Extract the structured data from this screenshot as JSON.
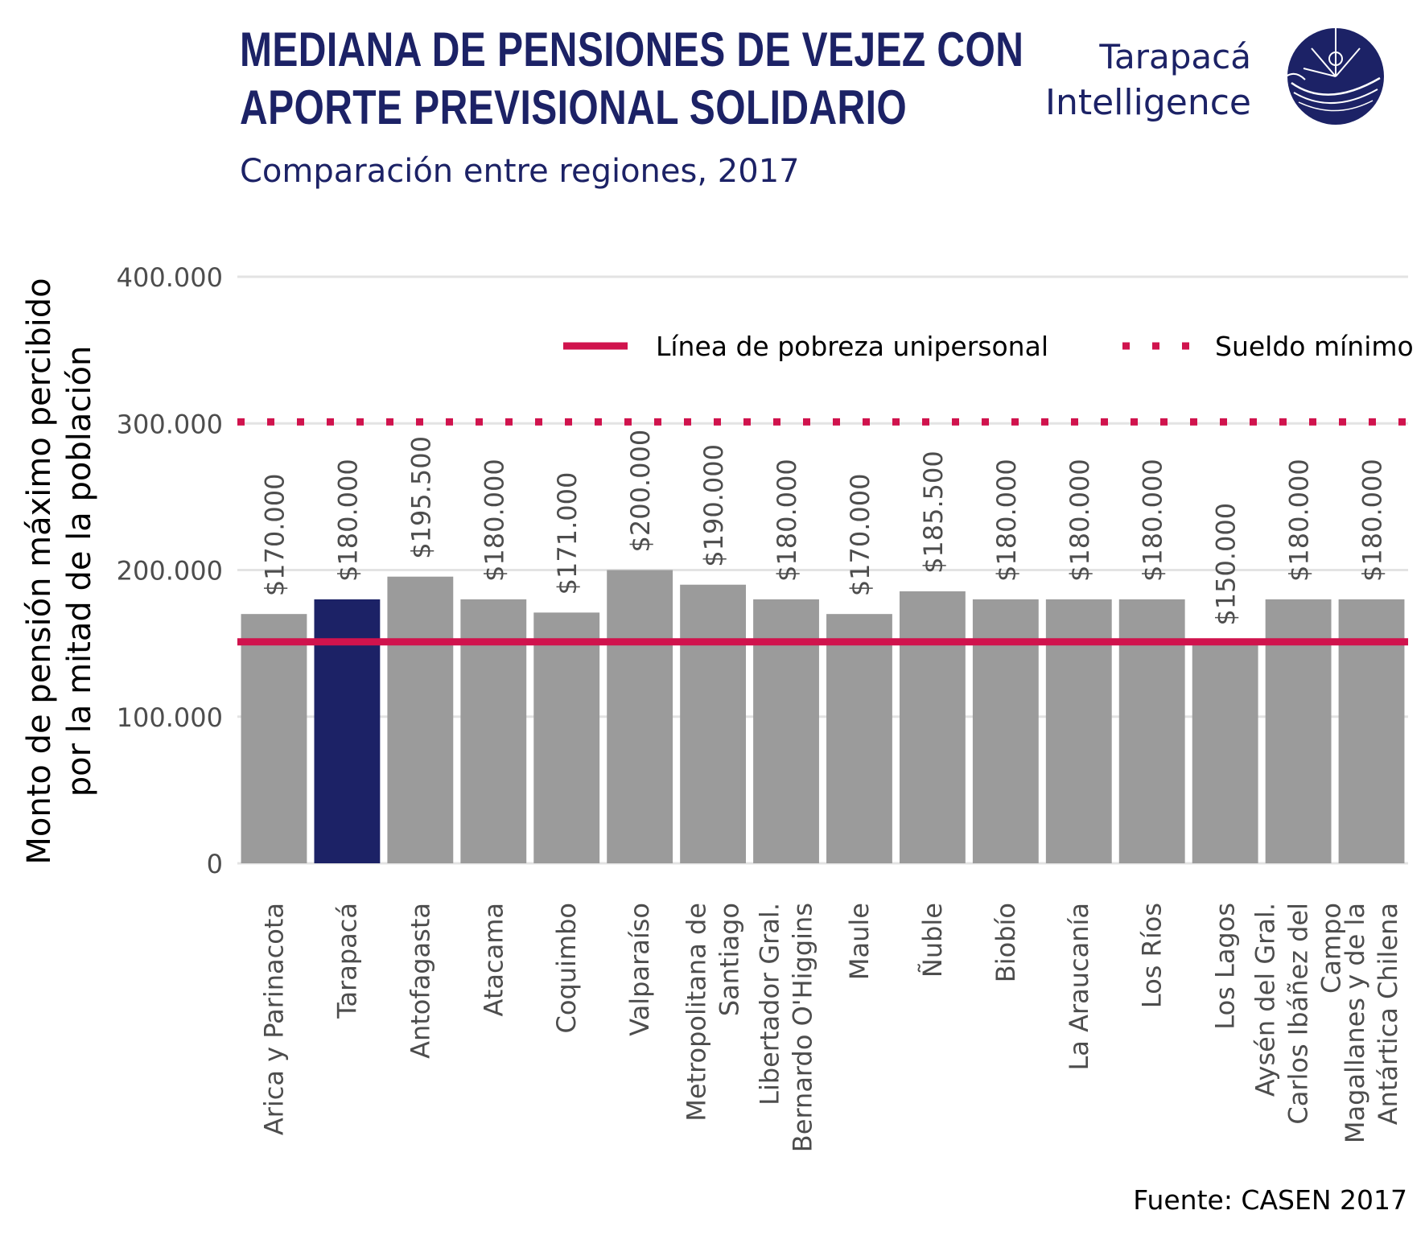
{
  "header": {
    "title_lines": [
      "MEDIANA DE PENSIONES DE VEJEZ CON",
      "APORTE PREVISIONAL SOLIDARIO"
    ],
    "subtitle": "Comparación entre regiones, 2017"
  },
  "logo": {
    "line1": "Tarapacá",
    "line2": "Intelligence"
  },
  "source": "Fuente: CASEN 2017",
  "colors": {
    "bar_default": "#9b9b9b",
    "bar_highlight": "#1c2266",
    "reference_line": "#d0134d",
    "grid": "#e3e3e3",
    "title": "#1c2266"
  },
  "chart_data": {
    "type": "bar",
    "ylabel_lines": [
      "Monto de pensión máximo percibido",
      "por la mitad de la población"
    ],
    "ylim": [
      0,
      400000
    ],
    "yticks": [
      0,
      100000,
      200000,
      300000,
      400000
    ],
    "ytick_labels": [
      "0",
      "100.000",
      "200.000",
      "300.000",
      "400.000"
    ],
    "grid": true,
    "legend_position": "top-right",
    "categories": [
      [
        "Arica y Parinacota"
      ],
      [
        "Tarapacá"
      ],
      [
        "Antofagasta"
      ],
      [
        "Atacama"
      ],
      [
        "Coquimbo"
      ],
      [
        "Valparaíso"
      ],
      [
        "Metropolitana de",
        "Santiago"
      ],
      [
        "Libertador Gral.",
        "Bernardo O'Higgins"
      ],
      [
        "Maule"
      ],
      [
        "Ñuble"
      ],
      [
        "Biobío"
      ],
      [
        "La Araucanía"
      ],
      [
        "Los Ríos"
      ],
      [
        "Los Lagos"
      ],
      [
        "Aysén del Gral.",
        "Carlos Ibáñez del",
        "Campo"
      ],
      [
        "Magallanes y de la",
        "Antártica Chilena"
      ]
    ],
    "values": [
      170000,
      180000,
      195500,
      180000,
      171000,
      200000,
      190000,
      180000,
      170000,
      185500,
      180000,
      180000,
      180000,
      150000,
      180000,
      180000
    ],
    "value_labels": [
      "$170.000",
      "$180.000",
      "$195.500",
      "$180.000",
      "$171.000",
      "$200.000",
      "$190.000",
      "$180.000",
      "$170.000",
      "$185.500",
      "$180.000",
      "$180.000",
      "$180.000",
      "$150.000",
      "$180.000",
      "$180.000"
    ],
    "highlight": [
      "Tarapacá"
    ],
    "reference_lines": [
      {
        "name": "Línea de pobreza unipersonal",
        "value": 151000,
        "style": "solid"
      },
      {
        "name": "Sueldo mínimo",
        "value": 301000,
        "style": "dotted"
      }
    ]
  }
}
